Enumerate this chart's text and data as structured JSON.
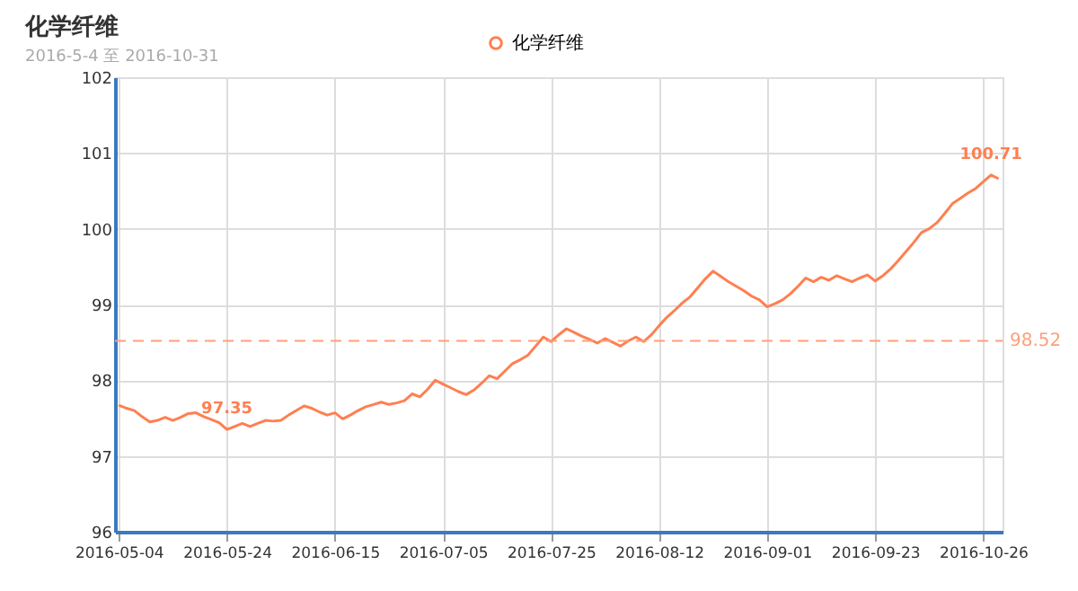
{
  "chart_data": {
    "type": "line",
    "title": "化学纤维",
    "subtitle": "2016-5-4 至 2016-10-31",
    "categories": [
      "2016-05-04",
      null,
      null,
      null,
      null,
      null,
      null,
      null,
      null,
      null,
      null,
      null,
      null,
      null,
      "2016-05-24",
      null,
      null,
      null,
      null,
      null,
      null,
      null,
      null,
      null,
      null,
      null,
      null,
      null,
      "2016-06-15",
      null,
      null,
      null,
      null,
      null,
      null,
      null,
      null,
      null,
      null,
      null,
      null,
      null,
      "2016-07-05",
      null,
      null,
      null,
      null,
      null,
      null,
      null,
      null,
      null,
      null,
      null,
      null,
      null,
      "2016-07-25",
      null,
      null,
      null,
      null,
      null,
      null,
      null,
      null,
      null,
      null,
      null,
      null,
      null,
      "2016-08-12",
      null,
      null,
      null,
      null,
      null,
      null,
      null,
      null,
      null,
      null,
      null,
      null,
      null,
      "2016-09-01",
      null,
      null,
      null,
      null,
      null,
      null,
      null,
      null,
      null,
      null,
      null,
      null,
      null,
      "2016-09-23",
      null,
      null,
      null,
      null,
      null,
      null,
      null,
      null,
      null,
      null,
      null,
      null,
      null,
      "2016-10-26",
      null,
      null
    ],
    "series": [
      {
        "name": "化学纤维",
        "color": "#ff7f50",
        "values": [
          97.67,
          97.63,
          97.6,
          97.52,
          97.45,
          97.47,
          97.51,
          97.47,
          97.51,
          97.56,
          97.57,
          97.52,
          97.48,
          97.44,
          97.35,
          97.39,
          97.43,
          97.39,
          97.43,
          97.47,
          97.46,
          97.47,
          97.54,
          97.6,
          97.66,
          97.63,
          97.58,
          97.54,
          97.57,
          97.49,
          97.54,
          97.6,
          97.65,
          97.68,
          97.71,
          97.68,
          97.7,
          97.73,
          97.82,
          97.78,
          97.88,
          98.0,
          97.95,
          97.9,
          97.85,
          97.81,
          97.87,
          97.96,
          98.06,
          98.02,
          98.12,
          98.22,
          98.27,
          98.33,
          98.45,
          98.57,
          98.51,
          98.6,
          98.68,
          98.63,
          98.58,
          98.54,
          98.49,
          98.55,
          98.5,
          98.45,
          98.52,
          98.57,
          98.51,
          98.6,
          98.72,
          98.83,
          98.92,
          99.02,
          99.1,
          99.22,
          99.34,
          99.44,
          99.37,
          99.3,
          99.24,
          99.18,
          99.11,
          99.06,
          98.97,
          99.01,
          99.06,
          99.14,
          99.24,
          99.35,
          99.3,
          99.36,
          99.32,
          99.38,
          99.34,
          99.3,
          99.35,
          99.39,
          99.31,
          99.38,
          99.47,
          99.58,
          99.7,
          99.82,
          99.95,
          100.0,
          100.08,
          100.2,
          100.33,
          100.4,
          100.47,
          100.53,
          100.62,
          100.71,
          100.66
        ]
      }
    ],
    "ylim": [
      96,
      102
    ],
    "yticks": [
      96,
      97,
      98,
      99,
      100,
      101,
      102
    ],
    "grid": true,
    "legend": "top",
    "marker": "none",
    "line_style": "solid",
    "ref_lines": [
      {
        "axis": "y",
        "value": 98.52,
        "label": "98.52",
        "color": "#ff9f7a",
        "line_style": "dashed"
      }
    ],
    "annotations": [
      {
        "text": "97.35",
        "x": "2016-05-24",
        "y": 97.35
      },
      {
        "text": "100.71",
        "y": 100.71
      }
    ]
  }
}
